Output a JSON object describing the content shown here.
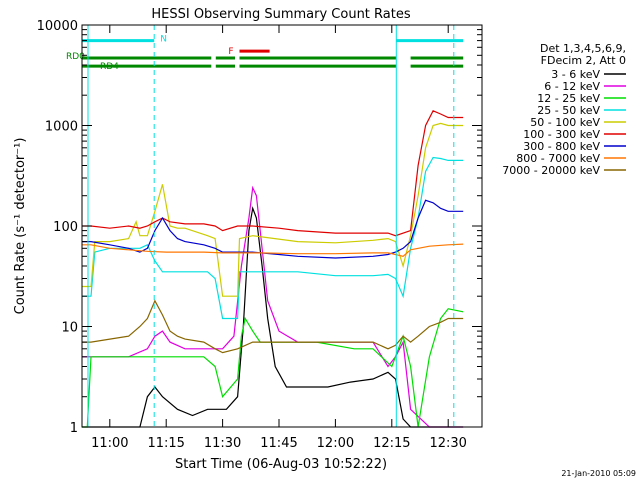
{
  "chart_data": {
    "type": "line",
    "title": "HESSI Observing Summary Count Rates",
    "xlabel": "Start Time (06-Aug-03 10:52:22)",
    "ylabel": "Count Rate (s⁻¹ detector⁻¹)",
    "yscale": "log",
    "ylim": [
      1,
      10000
    ],
    "xlim_minutes": [
      -7.4,
      99
    ],
    "x_ticks": [
      {
        "t": 0,
        "label": "11:00"
      },
      {
        "t": 15,
        "label": "11:15"
      },
      {
        "t": 30,
        "label": "11:30"
      },
      {
        "t": 45,
        "label": "11:45"
      },
      {
        "t": 60,
        "label": "12:00"
      },
      {
        "t": 75,
        "label": "12:15"
      },
      {
        "t": 90,
        "label": "12:30"
      }
    ],
    "y_ticks": [
      {
        "v": 1,
        "label": "1"
      },
      {
        "v": 10,
        "label": "10"
      },
      {
        "v": 100,
        "label": "100"
      },
      {
        "v": 1000,
        "label": "1000"
      },
      {
        "v": 10000,
        "label": "10000"
      }
    ],
    "legend_header": [
      "Det 1,3,4,5,6,9,",
      "FDecim 2, Att 0"
    ],
    "series": [
      {
        "name": "3 - 6 keV",
        "color": "#000000",
        "points": [
          [
            -7.4,
            1
          ],
          [
            -5,
            1
          ],
          [
            0,
            1
          ],
          [
            8,
            1
          ],
          [
            10,
            2
          ],
          [
            12,
            2.5
          ],
          [
            14,
            2
          ],
          [
            18,
            1.5
          ],
          [
            22,
            1.3
          ],
          [
            26,
            1.5
          ],
          [
            29,
            1.5
          ],
          [
            31,
            1.5
          ],
          [
            34,
            2
          ],
          [
            35.5,
            10
          ],
          [
            37,
            90
          ],
          [
            38,
            150
          ],
          [
            39,
            120
          ],
          [
            40.5,
            40
          ],
          [
            42,
            12
          ],
          [
            44,
            4
          ],
          [
            47,
            2.5
          ],
          [
            52,
            2.5
          ],
          [
            58,
            2.5
          ],
          [
            64,
            2.8
          ],
          [
            70,
            3
          ],
          [
            74,
            3.5
          ],
          [
            76,
            3
          ],
          [
            78,
            1.2
          ],
          [
            80,
            1
          ],
          [
            85,
            1
          ],
          [
            90,
            1
          ],
          [
            94,
            1
          ]
        ]
      },
      {
        "name": "6 - 12 keV",
        "color": "#e000e0",
        "points": [
          [
            -7.4,
            5
          ],
          [
            -5,
            5
          ],
          [
            5,
            5
          ],
          [
            10,
            6
          ],
          [
            12,
            8
          ],
          [
            14,
            9
          ],
          [
            16,
            7
          ],
          [
            20,
            6
          ],
          [
            25,
            6
          ],
          [
            30,
            6
          ],
          [
            33,
            8
          ],
          [
            35,
            40
          ],
          [
            37,
            120
          ],
          [
            38,
            240
          ],
          [
            39,
            200
          ],
          [
            40.5,
            60
          ],
          [
            42,
            18
          ],
          [
            45,
            9
          ],
          [
            50,
            7
          ],
          [
            55,
            7
          ],
          [
            60,
            7
          ],
          [
            65,
            7
          ],
          [
            70,
            7
          ],
          [
            74,
            4
          ],
          [
            76,
            5
          ],
          [
            78,
            7
          ],
          [
            80,
            1.5
          ],
          [
            85,
            1
          ],
          [
            90,
            1
          ],
          [
            94,
            1
          ]
        ]
      },
      {
        "name": "12 - 25 keV",
        "color": "#00dd00",
        "points": [
          [
            -7.4,
            1
          ],
          [
            -6,
            1
          ],
          [
            -5,
            5
          ],
          [
            0,
            5
          ],
          [
            5,
            5
          ],
          [
            10,
            5
          ],
          [
            15,
            5
          ],
          [
            20,
            5
          ],
          [
            25,
            5
          ],
          [
            28,
            4
          ],
          [
            30,
            2
          ],
          [
            34,
            3
          ],
          [
            35,
            8
          ],
          [
            36,
            12
          ],
          [
            38,
            9
          ],
          [
            40,
            7
          ],
          [
            45,
            7
          ],
          [
            55,
            7
          ],
          [
            65,
            6
          ],
          [
            70,
            6
          ],
          [
            75,
            4
          ],
          [
            78,
            8
          ],
          [
            80,
            4
          ],
          [
            82,
            1
          ],
          [
            85,
            5
          ],
          [
            88,
            12
          ],
          [
            90,
            15
          ],
          [
            94,
            14
          ]
        ]
      },
      {
        "name": "25 - 50 keV",
        "color": "#00e0e0",
        "points": [
          [
            -7.4,
            20
          ],
          [
            -5,
            20
          ],
          [
            -4,
            55
          ],
          [
            0,
            60
          ],
          [
            5,
            60
          ],
          [
            8,
            60
          ],
          [
            10,
            65
          ],
          [
            12,
            45
          ],
          [
            14,
            35
          ],
          [
            16,
            35
          ],
          [
            18,
            35
          ],
          [
            20,
            35
          ],
          [
            26,
            35
          ],
          [
            28,
            30
          ],
          [
            30,
            12
          ],
          [
            34,
            12
          ],
          [
            34.5,
            35
          ],
          [
            38,
            35
          ],
          [
            50,
            35
          ],
          [
            60,
            32
          ],
          [
            70,
            32
          ],
          [
            74,
            33
          ],
          [
            76,
            30
          ],
          [
            78,
            20
          ],
          [
            80,
            60
          ],
          [
            82,
            120
          ],
          [
            84,
            350
          ],
          [
            86,
            480
          ],
          [
            88,
            470
          ],
          [
            90,
            450
          ],
          [
            94,
            450
          ]
        ]
      },
      {
        "name": "50 - 100 keV",
        "color": "#cccc00",
        "points": [
          [
            -7.4,
            25
          ],
          [
            -5,
            25
          ],
          [
            -4,
            70
          ],
          [
            0,
            70
          ],
          [
            5,
            75
          ],
          [
            7,
            110
          ],
          [
            8,
            80
          ],
          [
            10,
            80
          ],
          [
            12,
            140
          ],
          [
            14,
            260
          ],
          [
            16,
            100
          ],
          [
            18,
            95
          ],
          [
            20,
            95
          ],
          [
            26,
            80
          ],
          [
            28,
            75
          ],
          [
            30,
            20
          ],
          [
            34,
            20
          ],
          [
            34.5,
            75
          ],
          [
            38,
            80
          ],
          [
            50,
            70
          ],
          [
            60,
            68
          ],
          [
            70,
            72
          ],
          [
            74,
            75
          ],
          [
            76,
            70
          ],
          [
            78,
            40
          ],
          [
            80,
            80
          ],
          [
            82,
            200
          ],
          [
            84,
            600
          ],
          [
            86,
            1000
          ],
          [
            88,
            1050
          ],
          [
            90,
            1000
          ],
          [
            94,
            1000
          ]
        ]
      },
      {
        "name": "100 - 300 keV",
        "color": "#e00000",
        "points": [
          [
            -7.4,
            100
          ],
          [
            -5,
            100
          ],
          [
            0,
            95
          ],
          [
            5,
            100
          ],
          [
            8,
            95
          ],
          [
            10,
            100
          ],
          [
            12,
            110
          ],
          [
            14,
            120
          ],
          [
            16,
            110
          ],
          [
            20,
            105
          ],
          [
            25,
            105
          ],
          [
            28,
            100
          ],
          [
            30,
            90
          ],
          [
            34,
            100
          ],
          [
            38,
            100
          ],
          [
            45,
            95
          ],
          [
            50,
            90
          ],
          [
            60,
            85
          ],
          [
            70,
            85
          ],
          [
            74,
            85
          ],
          [
            76,
            80
          ],
          [
            80,
            90
          ],
          [
            82,
            400
          ],
          [
            84,
            1000
          ],
          [
            86,
            1400
          ],
          [
            88,
            1300
          ],
          [
            90,
            1200
          ],
          [
            94,
            1200
          ]
        ]
      },
      {
        "name": "300 - 800 keV",
        "color": "#0000cc",
        "points": [
          [
            -7.4,
            70
          ],
          [
            -5,
            70
          ],
          [
            0,
            65
          ],
          [
            5,
            60
          ],
          [
            8,
            55
          ],
          [
            10,
            60
          ],
          [
            12,
            90
          ],
          [
            14,
            120
          ],
          [
            16,
            90
          ],
          [
            18,
            75
          ],
          [
            20,
            70
          ],
          [
            25,
            65
          ],
          [
            28,
            60
          ],
          [
            30,
            55
          ],
          [
            34,
            55
          ],
          [
            38,
            55
          ],
          [
            45,
            52
          ],
          [
            50,
            50
          ],
          [
            60,
            48
          ],
          [
            70,
            50
          ],
          [
            74,
            52
          ],
          [
            76,
            55
          ],
          [
            78,
            60
          ],
          [
            80,
            70
          ],
          [
            82,
            120
          ],
          [
            84,
            180
          ],
          [
            86,
            170
          ],
          [
            88,
            150
          ],
          [
            90,
            140
          ],
          [
            94,
            140
          ]
        ]
      },
      {
        "name": "800 - 7000 keV",
        "color": "#ff7700",
        "points": [
          [
            -7.4,
            65
          ],
          [
            -5,
            65
          ],
          [
            0,
            60
          ],
          [
            5,
            58
          ],
          [
            10,
            56
          ],
          [
            15,
            55
          ],
          [
            20,
            55
          ],
          [
            25,
            55
          ],
          [
            30,
            54
          ],
          [
            35,
            54
          ],
          [
            40,
            54
          ],
          [
            50,
            53
          ],
          [
            60,
            53
          ],
          [
            70,
            54
          ],
          [
            74,
            54
          ],
          [
            76,
            52
          ],
          [
            78,
            50
          ],
          [
            80,
            58
          ],
          [
            85,
            63
          ],
          [
            90,
            65
          ],
          [
            94,
            66
          ]
        ]
      },
      {
        "name": "7000 - 20000 keV",
        "color": "#886600",
        "points": [
          [
            -7.4,
            7
          ],
          [
            -5,
            7
          ],
          [
            0,
            7.5
          ],
          [
            5,
            8
          ],
          [
            8,
            10
          ],
          [
            10,
            12
          ],
          [
            12,
            18
          ],
          [
            14,
            13
          ],
          [
            16,
            9
          ],
          [
            18,
            8
          ],
          [
            20,
            7.5
          ],
          [
            25,
            7
          ],
          [
            28,
            6
          ],
          [
            30,
            5.5
          ],
          [
            34,
            6
          ],
          [
            38,
            7
          ],
          [
            45,
            7
          ],
          [
            50,
            7
          ],
          [
            60,
            7
          ],
          [
            70,
            7
          ],
          [
            74,
            6
          ],
          [
            76,
            6.5
          ],
          [
            78,
            8
          ],
          [
            80,
            7
          ],
          [
            82,
            8
          ],
          [
            85,
            10
          ],
          [
            88,
            11
          ],
          [
            90,
            12
          ],
          [
            94,
            12
          ]
        ]
      }
    ],
    "v_lines_solid": [
      -5.8,
      76.2
    ],
    "v_lines_dashed": [
      11.8,
      91.5
    ],
    "bars": [
      {
        "label": "N",
        "color": "#00e0e0",
        "level": 7000,
        "segments": [
          [
            -7.4,
            11.8
          ],
          [
            76.2,
            94
          ]
        ]
      },
      {
        "label": "F",
        "color": "#e00000",
        "level": 5500,
        "segments": [
          [
            34.5,
            42.5
          ]
        ]
      },
      {
        "label": "RD0",
        "color": "#008800",
        "level": 4700,
        "segments": [
          [
            -7.4,
            27
          ],
          [
            28.2,
            33.3
          ],
          [
            34.5,
            76.2
          ],
          [
            80,
            94
          ]
        ]
      },
      {
        "label": "RD4",
        "color": "#008800",
        "level": 3900,
        "segments": [
          [
            -7.4,
            27
          ],
          [
            28.2,
            33.3
          ],
          [
            34.5,
            76.2
          ],
          [
            80,
            94
          ]
        ]
      }
    ]
  },
  "footer_date": "21-Jan-2010 05:09"
}
